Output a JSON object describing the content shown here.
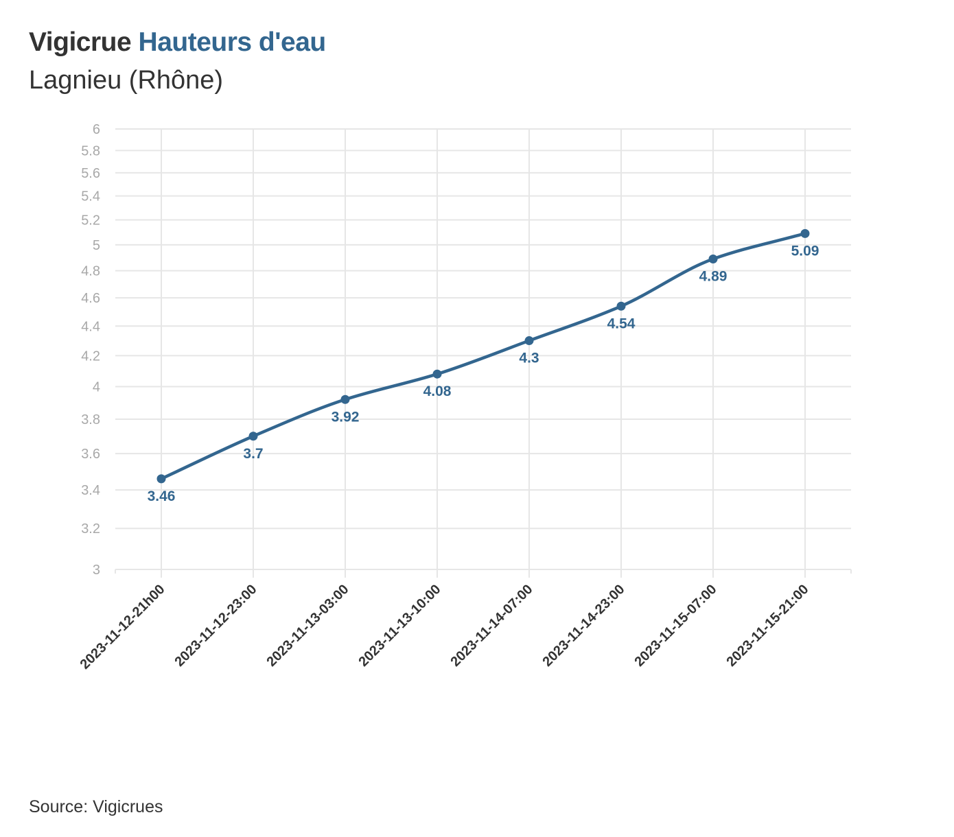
{
  "header": {
    "title_part1": "Vigicrue",
    "title_part2": "Hauteurs d'eau",
    "subtitle": "Lagnieu (Rhône)"
  },
  "footer": {
    "source": "Source: Vigicrues"
  },
  "colors": {
    "series": "#33668f",
    "grid": "#e6e6e6",
    "axis_text": "#a8a8a8",
    "text": "#333333"
  },
  "chart_data": {
    "type": "line",
    "x": [
      "2023-11-12-21h00",
      "2023-11-12-23:00",
      "2023-11-13-03:00",
      "2023-11-13-10:00",
      "2023-11-14-07:00",
      "2023-11-14-23:00",
      "2023-11-15-07:00",
      "2023-11-15-21:00"
    ],
    "series": [
      {
        "values": [
          3.46,
          3.7,
          3.92,
          4.08,
          4.3,
          4.54,
          4.89,
          5.09
        ],
        "labels": [
          "3.46",
          "3.7",
          "3.92",
          "4.08",
          "4.3",
          "4.54",
          "4.89",
          "5.09"
        ]
      }
    ],
    "yscale": "log",
    "ylim": [
      3,
      6
    ],
    "yticks": [
      "3",
      "3.2",
      "3.4",
      "3.6",
      "3.8",
      "4",
      "4.2",
      "4.4",
      "4.6",
      "4.8",
      "5",
      "5.2",
      "5.4",
      "5.6",
      "5.8",
      "6"
    ],
    "xlabel": "",
    "ylabel": "",
    "grid": true,
    "line_shape": "smooth",
    "markers": true,
    "data_labels": true
  }
}
